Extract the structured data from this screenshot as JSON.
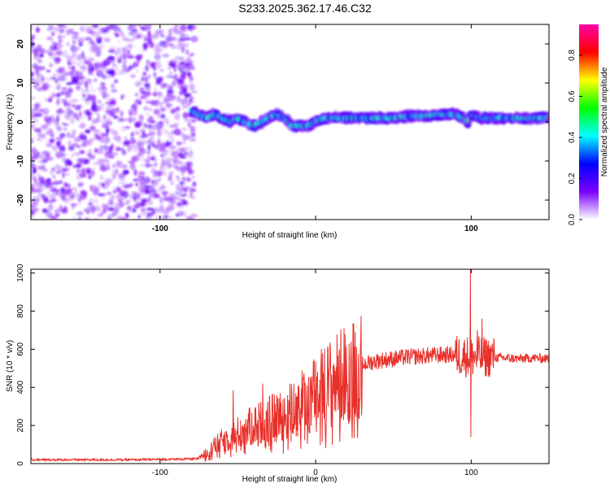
{
  "title": "S233.2025.362.17.46.C32",
  "chart_data": [
    {
      "type": "heatmap",
      "name": "spectrogram",
      "xlabel": "Height of straight line (km)",
      "ylabel": "Frequency (Hz)",
      "xlim": [
        -183,
        150
      ],
      "ylim": [
        -25,
        25
      ],
      "x_ticks": [
        -100,
        0,
        100
      ],
      "x_tick_labels": [
        "-100",
        "",
        "100"
      ],
      "y_ticks": [
        -20,
        -10,
        0,
        10,
        20
      ],
      "y_tick_labels": [
        "-20",
        "-10",
        "0",
        "10",
        "20"
      ],
      "noise_region_end_km": -80,
      "ridge": {
        "x": [
          -80,
          -75,
          -70,
          -65,
          -60,
          -55,
          -50,
          -45,
          -40,
          -35,
          -30,
          -25,
          -20,
          -15,
          -10,
          -5,
          0,
          5,
          10,
          20,
          30,
          40,
          50,
          60,
          70,
          80,
          85,
          90,
          95,
          98,
          100,
          105,
          110,
          120,
          130,
          140,
          150
        ],
        "y": [
          3,
          2,
          1,
          2,
          1,
          0,
          1,
          0,
          -1,
          0,
          1,
          2,
          1,
          -1,
          -1,
          -1,
          0,
          1,
          1,
          1,
          1,
          1,
          1,
          1.5,
          1.5,
          2,
          2,
          2,
          1,
          0,
          2,
          1,
          1,
          1,
          1,
          1,
          1
        ]
      },
      "colorbar": {
        "label": "Normalized spectral amplitude",
        "min": 0,
        "max": 0.95,
        "ticks": [
          0.0,
          0.2,
          0.4,
          0.6,
          0.8
        ],
        "tick_labels": [
          "0.0",
          "0.2",
          "0.4",
          "0.6",
          "0.8"
        ],
        "colors": [
          "#ffffff",
          "#7b00ff",
          "#0000ff",
          "#00ffff",
          "#00ff00",
          "#ffff00",
          "#ff0000",
          "#ff00aa"
        ]
      }
    },
    {
      "type": "line",
      "name": "snr",
      "xlabel": "Height of straight line (km)",
      "ylabel": "SNR (10 * v/v)",
      "xlim": [
        -183,
        150
      ],
      "ylim": [
        0,
        1020
      ],
      "x_ticks": [
        -100,
        0,
        100
      ],
      "x_tick_labels": [
        "-100",
        "0",
        "100"
      ],
      "y_ticks": [
        0,
        200,
        400,
        600,
        800,
        1000
      ],
      "y_tick_labels": [
        "0",
        "200",
        "400",
        "600",
        "800",
        "1000"
      ],
      "line_color": "#e8302a",
      "envelope": {
        "x": [
          -183,
          -120,
          -75,
          -70,
          -60,
          -50,
          -40,
          -30,
          -20,
          -10,
          0,
          10,
          20,
          30,
          40,
          50,
          60,
          70,
          80,
          90,
          100,
          110,
          120,
          130,
          140,
          150
        ],
        "y": [
          20,
          20,
          25,
          60,
          120,
          160,
          200,
          230,
          260,
          310,
          370,
          430,
          480,
          520,
          540,
          550,
          560,
          565,
          570,
          570,
          560,
          560,
          555,
          550,
          555,
          550
        ]
      },
      "spikes": [
        {
          "x": -53,
          "y": 385
        },
        {
          "x": -34,
          "y": 420
        },
        {
          "x": -14,
          "y": 420
        },
        {
          "x": 99.5,
          "y": 1020
        },
        {
          "x": 99.8,
          "y": 140
        },
        {
          "x": 107,
          "y": 760
        },
        {
          "x": 104,
          "y": 700
        }
      ]
    }
  ]
}
